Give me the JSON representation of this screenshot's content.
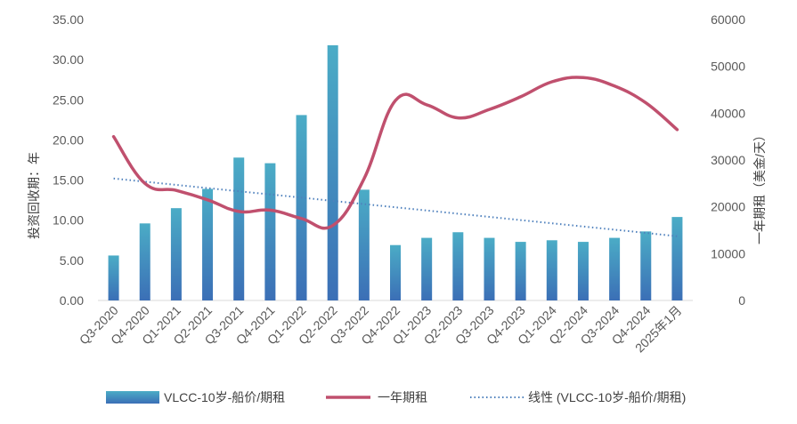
{
  "chart_data": {
    "type": "bar",
    "categories": [
      "Q3-2020",
      "Q4-2020",
      "Q1-2021",
      "Q2-2021",
      "Q3-2021",
      "Q4-2021",
      "Q1-2022",
      "Q2-2022",
      "Q3-2022",
      "Q4-2022",
      "Q1-2023",
      "Q2-2023",
      "Q3-2023",
      "Q4-2023",
      "Q1-2024",
      "Q2-2024",
      "Q3-2024",
      "Q4-2024",
      "2025年1月"
    ],
    "ylabel": "投资回收期：年",
    "y2label": "一年期租（美金/天）",
    "ylim": [
      0,
      35
    ],
    "y2lim": [
      0,
      60000
    ],
    "yticks": [
      "0.00",
      "5.00",
      "10.00",
      "15.00",
      "20.00",
      "25.00",
      "30.00",
      "35.00"
    ],
    "y2ticks": [
      "0",
      "10000",
      "20000",
      "30000",
      "40000",
      "50000",
      "60000"
    ],
    "grid": false,
    "legend_position": "bottom",
    "series": [
      {
        "name": "VLCC-10岁-船价/期租",
        "type": "bar",
        "axis": "left",
        "color": "#4bacc6",
        "values": [
          5.6,
          9.6,
          11.5,
          13.9,
          17.8,
          17.1,
          23.1,
          31.8,
          13.8,
          6.9,
          7.8,
          8.5,
          7.8,
          7.3,
          7.5,
          7.3,
          7.8,
          8.6,
          10.4
        ]
      },
      {
        "name": "一年期租",
        "type": "line",
        "axis": "right",
        "color": "#c0506e",
        "values": [
          35000,
          25000,
          23500,
          21500,
          19000,
          19300,
          17500,
          16000,
          26000,
          42700,
          41800,
          39000,
          40800,
          43500,
          46700,
          47600,
          45800,
          42200,
          36500
        ]
      },
      {
        "name": "线性 (VLCC-10岁-船价/期租)",
        "type": "trendline",
        "axis": "left",
        "color": "#4f81bd",
        "values": [
          15.2,
          14.8,
          14.4,
          14.0,
          13.6,
          13.21,
          12.81,
          12.41,
          12.01,
          11.61,
          11.21,
          10.81,
          10.41,
          10.01,
          9.61,
          9.22,
          8.82,
          8.42,
          8.0
        ]
      }
    ]
  }
}
